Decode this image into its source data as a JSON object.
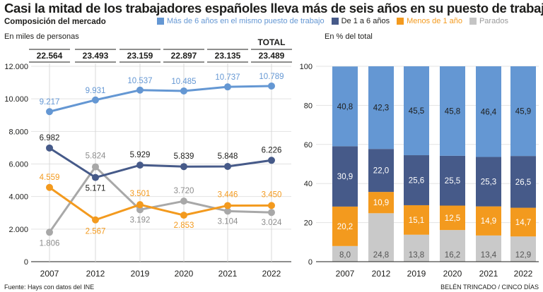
{
  "header": {
    "title": "Casi la mitad de los trabajadores españoles lleva más de seis años en su puesto de trabajo",
    "subtitle": "Composición del mercado"
  },
  "legend": [
    {
      "label": "Más de 6 años en el mismo puesto de trabajo",
      "color": "#6497d3",
      "text_color": "#6497d3"
    },
    {
      "label": "De 1 a 6 años",
      "color": "#465a89",
      "text_color": "#1d1d1b"
    },
    {
      "label": "Menos de 1 año",
      "color": "#f39a1e",
      "text_color": "#f39a1e"
    },
    {
      "label": "Parados",
      "color": "#c4c4c4",
      "text_color": "#9a9a9a"
    }
  ],
  "units_left": "En miles de personas",
  "units_right": "En % del total",
  "source": "Fuente: Hays con datos del INE",
  "credit": "BELÉN TRINCADO / CINCO DÍAS",
  "chart_data": [
    {
      "type": "line",
      "categories": [
        "2007",
        "2012",
        "2019",
        "2020",
        "2021",
        "2022"
      ],
      "ylim": [
        0,
        12000
      ],
      "yticks": [
        0,
        2000,
        4000,
        6000,
        8000,
        10000,
        12000
      ],
      "ytick_labels": [
        "0",
        "2.000",
        "4.000",
        "6.000",
        "8.000",
        "10.000",
        "12.000"
      ],
      "total_label": "TOTAL",
      "totals": [
        "22.564",
        "23.493",
        "23.159",
        "22.897",
        "23.135",
        "23.489"
      ],
      "series": [
        {
          "name": "Más de 6 años en el mismo puesto de trabajo",
          "color": "#6497d3",
          "label_color": "#6497d3",
          "values": [
            9217,
            9931,
            10537,
            10485,
            10737,
            10789
          ],
          "labels": [
            "9.217",
            "9.931",
            "10.537",
            "10.485",
            "10.737",
            "10.789"
          ]
        },
        {
          "name": "De 1 a 6 años",
          "color": "#465a89",
          "label_color": "#1d1d1b",
          "values": [
            6982,
            5171,
            5929,
            5839,
            5848,
            6226
          ],
          "labels": [
            "6.982",
            "5.171",
            "5.929",
            "5.839",
            "5.848",
            "6.226"
          ]
        },
        {
          "name": "Menos de 1 año",
          "color": "#f39a1e",
          "label_color": "#f39a1e",
          "values": [
            4559,
            2567,
            3501,
            2853,
            3446,
            3450
          ],
          "labels": [
            "4.559",
            "2.567",
            "3.501",
            "2.853",
            "3.446",
            "3.450"
          ]
        },
        {
          "name": "Parados",
          "color": "#a8a8a8",
          "label_color": "#8c8c8c",
          "values": [
            1806,
            5824,
            3192,
            3720,
            3104,
            3024
          ],
          "labels": [
            "1.806",
            "5.824",
            "3.192",
            "3.720",
            "3.104",
            "3.024"
          ]
        }
      ]
    },
    {
      "type": "bar",
      "stacked": true,
      "categories": [
        "2007",
        "2012",
        "2019",
        "2020",
        "2021",
        "2022"
      ],
      "ylim": [
        0,
        100
      ],
      "yticks": [
        0,
        20,
        40,
        60,
        80,
        100
      ],
      "series": [
        {
          "name": "Parados",
          "color": "#c9c9c9",
          "label_color": "#555555",
          "values": [
            8.0,
            24.8,
            13.8,
            16.2,
            13.4,
            12.9
          ],
          "labels": [
            "8,0",
            "24,8",
            "13,8",
            "16,2",
            "13,4",
            "12,9"
          ]
        },
        {
          "name": "Menos de 1 año",
          "color": "#f39a1e",
          "label_color": "#ffffff",
          "values": [
            20.2,
            10.9,
            15.1,
            12.5,
            14.9,
            14.7
          ],
          "labels": [
            "20,2",
            "10,9",
            "15,1",
            "12,5",
            "14,9",
            "14,7"
          ]
        },
        {
          "name": "De 1 a 6 años",
          "color": "#465a89",
          "label_color": "#ffffff",
          "values": [
            30.9,
            22.0,
            25.6,
            25.5,
            25.3,
            26.5
          ],
          "labels": [
            "30,9",
            "22,0",
            "25,6",
            "25,5",
            "25,3",
            "26,5"
          ]
        },
        {
          "name": "Más de 6 años en el mismo puesto de trabajo",
          "color": "#6497d3",
          "label_color": "#1d1d1b",
          "values": [
            40.8,
            42.3,
            45.5,
            45.8,
            46.4,
            45.9
          ],
          "labels": [
            "40,8",
            "42,3",
            "45,5",
            "45,8",
            "46,4",
            "45,9"
          ]
        }
      ]
    }
  ]
}
